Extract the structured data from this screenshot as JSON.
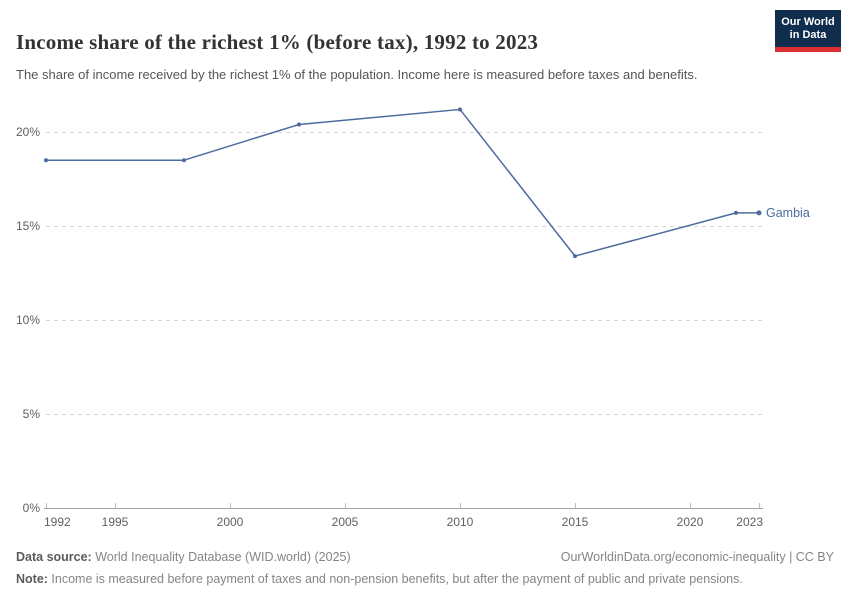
{
  "header": {
    "title": "Income share of the richest 1% (before tax), 1992 to 2023",
    "subtitle": "The share of income received by the richest 1% of the population. Income here is measured before taxes and benefits.",
    "logo": {
      "line1": "Our World",
      "line2": "in Data",
      "bg_color": "#102d4e",
      "accent_color": "#dc2f33"
    }
  },
  "chart_data": {
    "type": "line",
    "title": "Income share of the richest 1% (before tax), 1992 to 2023",
    "series": [
      {
        "name": "Gambia",
        "color": "#4c6b9e",
        "x": [
          1992,
          1998,
          2003,
          2010,
          2015,
          2022,
          2023
        ],
        "values": [
          18.5,
          18.5,
          20.4,
          21.2,
          13.4,
          15.7,
          15.7
        ]
      }
    ],
    "xlabel": "",
    "ylabel": "",
    "x_ticks": [
      1992,
      1995,
      2000,
      2005,
      2010,
      2015,
      2020,
      2023
    ],
    "y_ticks": [
      0,
      5,
      10,
      15,
      20
    ],
    "y_tick_suffix": "%",
    "xlim": [
      1992,
      2023
    ],
    "ylim": [
      0,
      22
    ],
    "grid": "horizontal dashed",
    "grid_color": "#d6d6d6",
    "axis_color": "#a3a3a3",
    "tick_label_color": "#5f5f5f",
    "legend_position": "end-of-line label"
  },
  "footer": {
    "source_label": "Data source:",
    "source_text": " World Inequality Database (WID.world) (2025)",
    "link_text": "OurWorldinData.org/economic-inequality | CC BY",
    "note_label": "Note:",
    "note_text": " Income is measured before payment of taxes and non-pension benefits, but after the payment of public and private pensions."
  }
}
